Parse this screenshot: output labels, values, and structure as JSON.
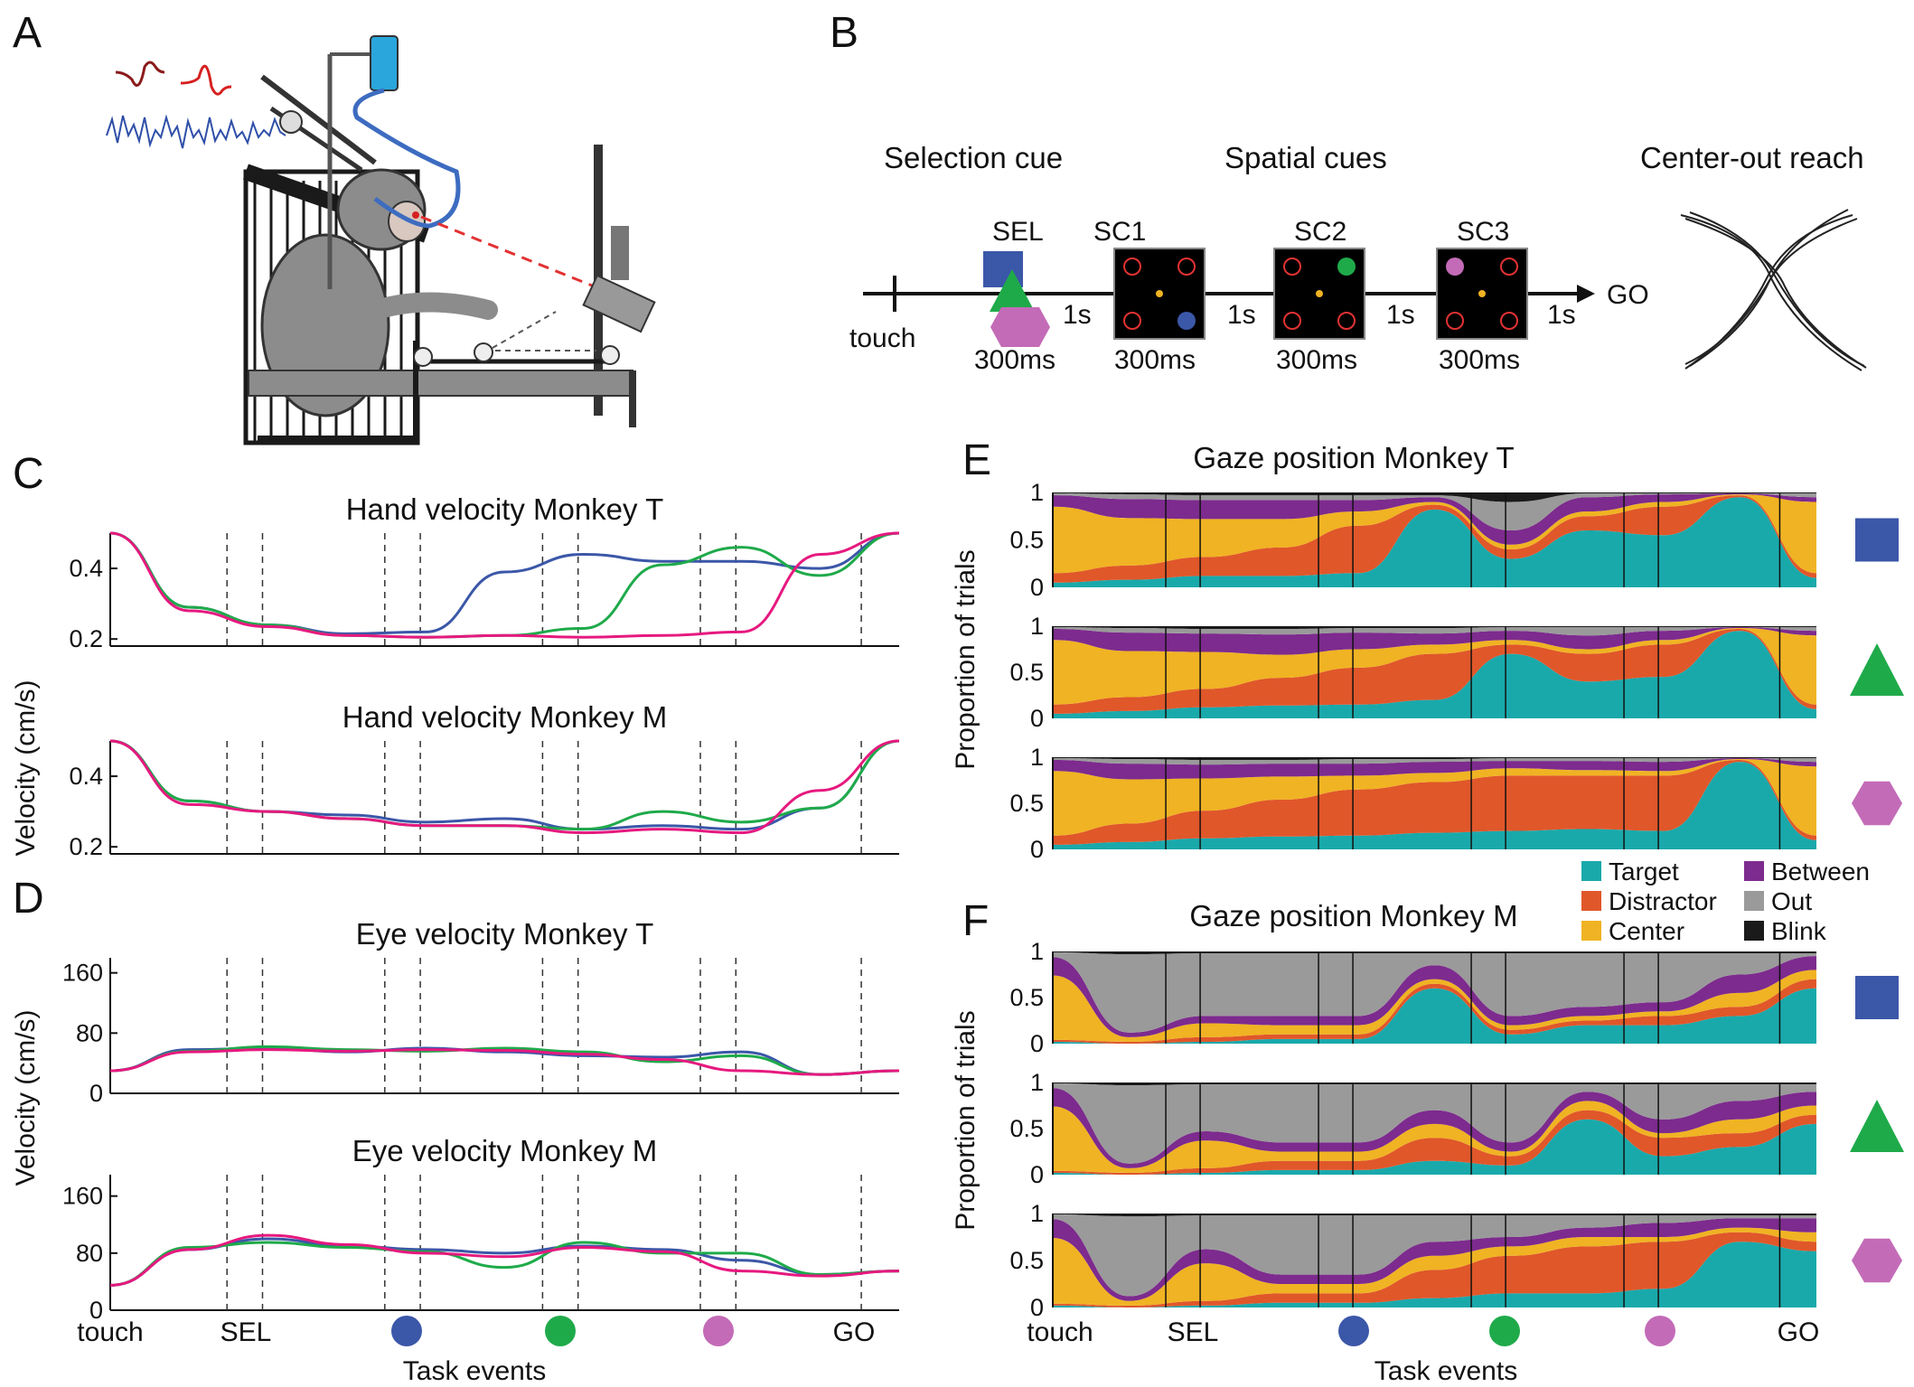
{
  "panels": {
    "A": {
      "letter": "A"
    },
    "B": {
      "letter": "B",
      "selection_cue": "Selection cue",
      "spatial_cues": "Spatial cues",
      "center_out": "Center-out reach",
      "touch": "touch",
      "go": "GO",
      "sel": "SEL",
      "sc1": "SC1",
      "sc2": "SC2",
      "sc3": "SC3",
      "dur_sel": "300ms",
      "dur_sc1": "300ms",
      "dur_sc2": "300ms",
      "dur_sc3": "300ms",
      "delay1": "1s",
      "delay2": "1s",
      "delay3": "1s",
      "delay4": "1s"
    },
    "C": {
      "letter": "C",
      "ylabel": "Velocity (cm/s)"
    },
    "D": {
      "letter": "D",
      "ylabel": "Velocity (cm/s)"
    },
    "E": {
      "letter": "E",
      "title": "Gaze position Monkey T",
      "ylabel": "Proportion of trials"
    },
    "F": {
      "letter": "F",
      "title": "Gaze position Monkey M",
      "ylabel": "Proportion of trials"
    }
  },
  "task_events": {
    "label": "Task events",
    "touch": "touch",
    "sel": "SEL",
    "go": "GO"
  },
  "colors": {
    "blue": "#3b57a8",
    "green": "#1faa4a",
    "magenta": "#e6197f",
    "purple_cue": "#c36bb7",
    "target": "#1aa9ab",
    "distractor": "#e0572a",
    "center": "#f0b323",
    "between": "#7d2b8e",
    "out": "#9a9a9a",
    "blink": "#1a1a1a"
  },
  "legend": {
    "target": "Target",
    "distractor": "Distractor",
    "center": "Center",
    "between": "Between",
    "out": "Out",
    "blink": "Blink"
  },
  "chart_data": [
    {
      "id": "hand-T",
      "type": "line",
      "title": "Hand velocity Monkey T",
      "ylim": [
        0.18,
        0.5
      ],
      "yticks": [
        0.2,
        0.4
      ],
      "ytick_labels": [
        "0.2",
        "0.4"
      ],
      "x": [
        0,
        10,
        20,
        30,
        40,
        50,
        60,
        70,
        80,
        90,
        100
      ],
      "series": [
        {
          "color": "blue",
          "values": [
            0.5,
            0.29,
            0.24,
            0.215,
            0.22,
            0.39,
            0.44,
            0.42,
            0.42,
            0.4,
            0.5
          ]
        },
        {
          "color": "green",
          "values": [
            0.5,
            0.29,
            0.24,
            0.21,
            0.205,
            0.21,
            0.23,
            0.41,
            0.46,
            0.38,
            0.5
          ]
        },
        {
          "color": "magenta",
          "values": [
            0.5,
            0.28,
            0.235,
            0.21,
            0.205,
            0.21,
            0.205,
            0.21,
            0.22,
            0.44,
            0.5
          ]
        }
      ]
    },
    {
      "id": "hand-M",
      "type": "line",
      "title": "Hand velocity Monkey M",
      "ylim": [
        0.18,
        0.5
      ],
      "yticks": [
        0.2,
        0.4
      ],
      "ytick_labels": [
        "0.2",
        "0.4"
      ],
      "x": [
        0,
        10,
        20,
        30,
        40,
        50,
        60,
        70,
        80,
        90,
        100
      ],
      "series": [
        {
          "color": "blue",
          "values": [
            0.5,
            0.33,
            0.3,
            0.29,
            0.27,
            0.28,
            0.25,
            0.26,
            0.25,
            0.31,
            0.5
          ]
        },
        {
          "color": "green",
          "values": [
            0.5,
            0.33,
            0.3,
            0.28,
            0.26,
            0.26,
            0.25,
            0.3,
            0.27,
            0.31,
            0.5
          ]
        },
        {
          "color": "magenta",
          "values": [
            0.5,
            0.32,
            0.3,
            0.28,
            0.26,
            0.26,
            0.24,
            0.25,
            0.24,
            0.36,
            0.5
          ]
        }
      ]
    },
    {
      "id": "eye-T",
      "type": "line",
      "title": "Eye velocity Monkey T",
      "ylim": [
        0,
        180
      ],
      "yticks": [
        0,
        80,
        160
      ],
      "ytick_labels": [
        "0",
        "80",
        "160"
      ],
      "x": [
        0,
        10,
        20,
        30,
        40,
        50,
        60,
        70,
        80,
        90,
        100
      ],
      "series": [
        {
          "color": "blue",
          "values": [
            30,
            58,
            60,
            55,
            60,
            55,
            50,
            48,
            55,
            25,
            30
          ]
        },
        {
          "color": "green",
          "values": [
            30,
            56,
            62,
            58,
            56,
            60,
            55,
            42,
            50,
            25,
            30
          ]
        },
        {
          "color": "magenta",
          "values": [
            30,
            55,
            58,
            56,
            58,
            57,
            52,
            45,
            30,
            25,
            30
          ]
        }
      ]
    },
    {
      "id": "eye-M",
      "type": "line",
      "title": "Eye velocity Monkey M",
      "ylim": [
        0,
        190
      ],
      "yticks": [
        0,
        80,
        160
      ],
      "ytick_labels": [
        "0",
        "80",
        "160"
      ],
      "x": [
        0,
        10,
        20,
        30,
        40,
        50,
        60,
        70,
        80,
        90,
        100
      ],
      "series": [
        {
          "color": "blue",
          "values": [
            35,
            85,
            100,
            90,
            85,
            80,
            90,
            85,
            70,
            50,
            55
          ]
        },
        {
          "color": "green",
          "values": [
            35,
            88,
            95,
            88,
            82,
            60,
            95,
            80,
            80,
            50,
            55
          ]
        },
        {
          "color": "magenta",
          "values": [
            35,
            85,
            105,
            92,
            80,
            75,
            88,
            82,
            55,
            48,
            55
          ]
        }
      ]
    },
    {
      "id": "gaze-T",
      "type": "area",
      "ylim": [
        0,
        1
      ],
      "yticks": [
        0,
        0.5,
        1
      ],
      "ytick_labels": [
        "0",
        "0.5",
        "1"
      ],
      "x": [
        0,
        10,
        20,
        30,
        40,
        50,
        60,
        70,
        80,
        90,
        100
      ],
      "stack_order": [
        "target",
        "distractor",
        "center",
        "between",
        "out",
        "blink"
      ],
      "cues": [
        {
          "shape": "square",
          "color": "blue",
          "target": [
            0.05,
            0.08,
            0.12,
            0.12,
            0.15,
            0.82,
            0.3,
            0.6,
            0.55,
            0.95,
            0.1
          ],
          "distractor": [
            0.1,
            0.15,
            0.2,
            0.3,
            0.5,
            0.05,
            0.1,
            0.15,
            0.3,
            0.02,
            0.05
          ],
          "center": [
            0.7,
            0.5,
            0.4,
            0.3,
            0.15,
            0.03,
            0.05,
            0.05,
            0.05,
            0.01,
            0.75
          ],
          "between": [
            0.12,
            0.2,
            0.2,
            0.2,
            0.12,
            0.05,
            0.15,
            0.15,
            0.08,
            0.01,
            0.05
          ],
          "out": [
            0.02,
            0.05,
            0.05,
            0.05,
            0.05,
            0.02,
            0.3,
            0.04,
            0.01,
            0.0,
            0.04
          ],
          "blink": [
            0.01,
            0.02,
            0.03,
            0.03,
            0.03,
            0.03,
            0.1,
            0.01,
            0.01,
            0.01,
            0.01
          ]
        }
      ]
    }
  ],
  "cue_markers": [
    {
      "color": "blue"
    },
    {
      "color": "green"
    },
    {
      "color": "purple_cue"
    }
  ]
}
